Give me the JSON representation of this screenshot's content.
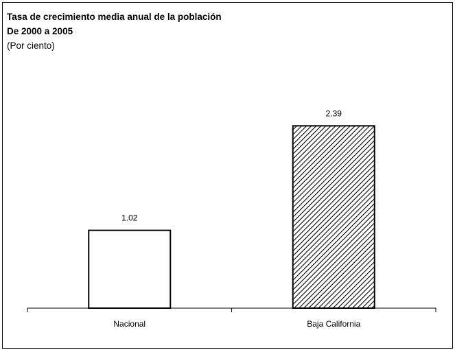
{
  "chart_data": {
    "type": "bar",
    "title": "Tasa de crecimiento media anual de la población",
    "subtitle": "De 2000 a 2005",
    "unit": "(Por ciento)",
    "categories": [
      "Nacional",
      "Baja California"
    ],
    "values": [
      1.02,
      2.39
    ],
    "data_labels": [
      "1.02",
      "2.39"
    ],
    "ylim": [
      0,
      2.69
    ],
    "grid": false,
    "legend": "none",
    "bar_fills": [
      "solid-white",
      "diagonal-hatch"
    ],
    "colors": {
      "bar_outline": "#000000",
      "bar_fill": "#ffffff",
      "hatch": "#000000",
      "axis": "#000000"
    }
  }
}
